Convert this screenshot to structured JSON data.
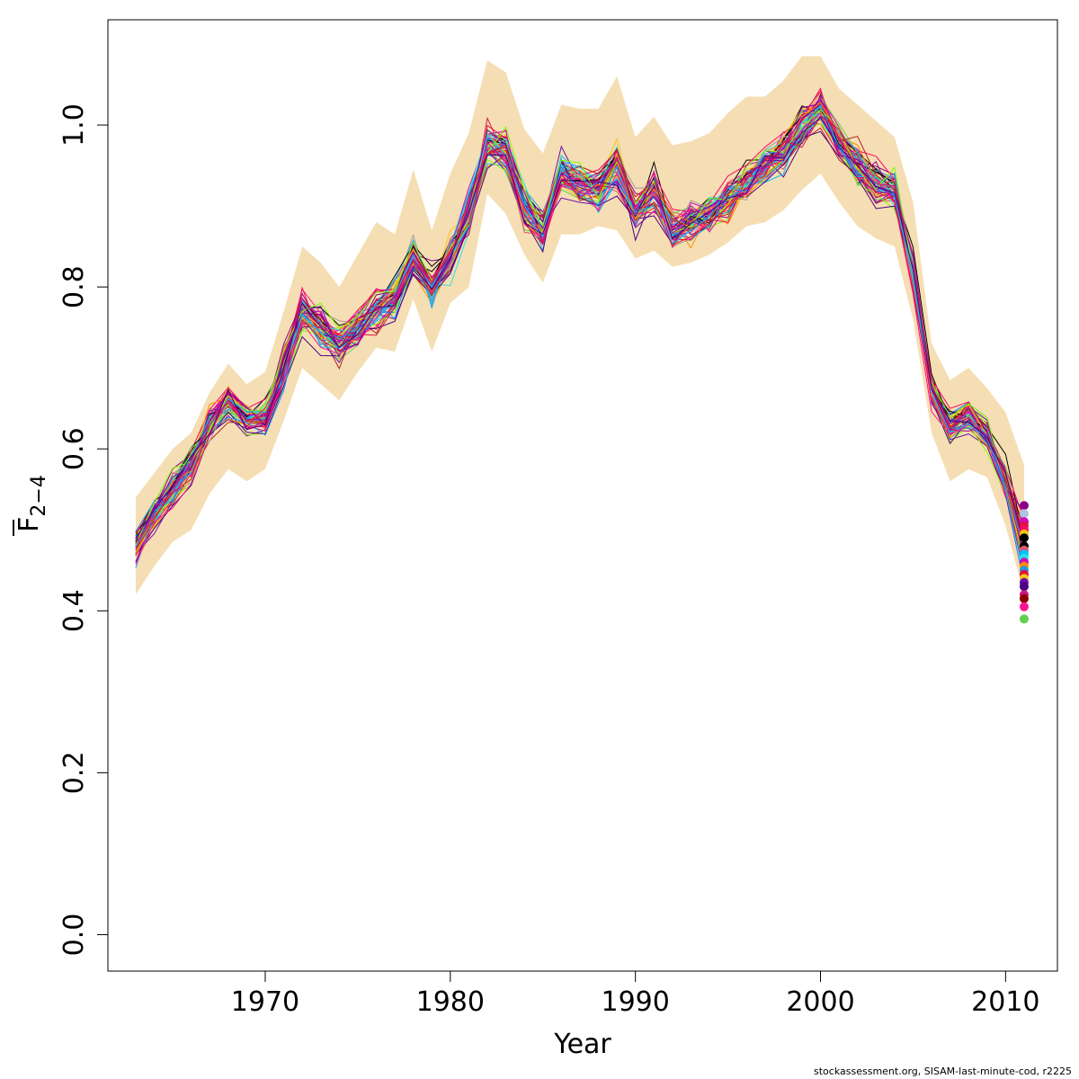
{
  "chart_data": {
    "type": "line",
    "title": "",
    "xlabel": "Year",
    "ylabel": "F",
    "ylabel_subscript": "2−4",
    "xlim": [
      1961.5,
      2012.8
    ],
    "ylim": [
      -0.045,
      1.13
    ],
    "x_ticks": [
      1970,
      1980,
      1990,
      2000,
      2010
    ],
    "y_ticks": [
      0.0,
      0.2,
      0.4,
      0.6,
      0.8,
      1.0
    ],
    "y_tick_labels": [
      "0.0",
      "0.2",
      "0.4",
      "0.6",
      "0.8",
      "1.0"
    ],
    "band_color": "#f5deb3",
    "x": [
      1963,
      1964,
      1965,
      1966,
      1967,
      1968,
      1969,
      1970,
      1971,
      1972,
      1973,
      1974,
      1975,
      1976,
      1977,
      1978,
      1979,
      1980,
      1981,
      1982,
      1983,
      1984,
      1985,
      1986,
      1987,
      1988,
      1989,
      1990,
      1991,
      1992,
      1993,
      1994,
      1995,
      1996,
      1997,
      1998,
      1999,
      2000,
      2001,
      2002,
      2003,
      2004,
      2005,
      2006,
      2007,
      2008,
      2009,
      2010,
      2011
    ],
    "median": [
      0.48,
      0.52,
      0.55,
      0.58,
      0.63,
      0.66,
      0.64,
      0.64,
      0.7,
      0.77,
      0.75,
      0.73,
      0.75,
      0.77,
      0.79,
      0.84,
      0.8,
      0.84,
      0.89,
      0.98,
      0.97,
      0.9,
      0.87,
      0.94,
      0.93,
      0.92,
      0.95,
      0.89,
      0.92,
      0.87,
      0.88,
      0.89,
      0.91,
      0.93,
      0.95,
      0.97,
      1.0,
      1.02,
      0.98,
      0.95,
      0.93,
      0.92,
      0.82,
      0.67,
      0.63,
      0.64,
      0.62,
      0.56,
      0.48
    ],
    "band_upper": [
      0.54,
      0.57,
      0.6,
      0.62,
      0.67,
      0.705,
      0.68,
      0.695,
      0.77,
      0.85,
      0.83,
      0.8,
      0.84,
      0.88,
      0.865,
      0.945,
      0.87,
      0.94,
      0.99,
      1.08,
      1.065,
      0.995,
      0.965,
      1.025,
      1.02,
      1.02,
      1.06,
      0.985,
      1.01,
      0.975,
      0.98,
      0.99,
      1.015,
      1.035,
      1.035,
      1.055,
      1.085,
      1.085,
      1.045,
      1.025,
      1.005,
      0.985,
      0.905,
      0.73,
      0.685,
      0.7,
      0.675,
      0.645,
      0.58
    ],
    "band_lower": [
      0.42,
      0.455,
      0.485,
      0.5,
      0.545,
      0.575,
      0.56,
      0.575,
      0.635,
      0.7,
      0.68,
      0.66,
      0.695,
      0.725,
      0.72,
      0.785,
      0.72,
      0.78,
      0.8,
      0.915,
      0.89,
      0.84,
      0.805,
      0.865,
      0.865,
      0.875,
      0.87,
      0.835,
      0.845,
      0.825,
      0.83,
      0.84,
      0.855,
      0.875,
      0.88,
      0.895,
      0.92,
      0.94,
      0.905,
      0.875,
      0.86,
      0.85,
      0.76,
      0.62,
      0.56,
      0.575,
      0.565,
      0.505,
      0.42
    ],
    "n_series": 60,
    "series_colors": [
      "#000000",
      "#df536b",
      "#61d04f",
      "#2297e6",
      "#28e2e5",
      "#cd0bbc",
      "#f5c710",
      "#9e9e9e",
      "#ff0066",
      "#8b008b",
      "#ff8c00",
      "#1e90ff",
      "#ff1493",
      "#b22222",
      "#6a0dad",
      "#00bfff",
      "#7cfc00",
      "#dc143c",
      "#c71585",
      "#4b0082"
    ],
    "final_points": [
      0.53,
      0.52,
      0.51,
      0.51,
      0.505,
      0.5,
      0.5,
      0.495,
      0.49,
      0.48,
      0.48,
      0.475,
      0.47,
      0.465,
      0.46,
      0.455,
      0.45,
      0.445,
      0.44,
      0.435,
      0.43,
      0.42,
      0.415,
      0.405,
      0.39
    ],
    "final_point_colors": [
      "#8b008b",
      "#b0c4de",
      "#ff1493",
      "#cd0bbc",
      "#dc143c",
      "#61d04f",
      "#ff0066",
      "#f5c710",
      "#000000",
      "#9e9e9e",
      "#000000",
      "#df536b",
      "#00bfff",
      "#28e2e5",
      "#cd0bbc",
      "#ff8c00",
      "#2297e6",
      "#dc143c",
      "#f5c710",
      "#6a0dad",
      "#4b0082",
      "#c71585",
      "#8b0000",
      "#ff1493",
      "#61d04f"
    ]
  },
  "footer": "stockassessment.org, SISAM-last-minute-cod, r2225"
}
